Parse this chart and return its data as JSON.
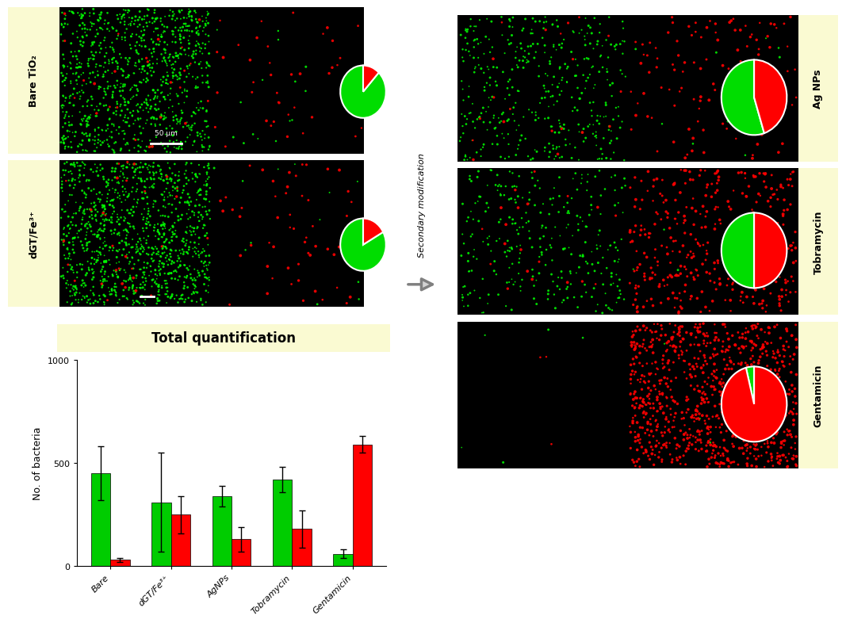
{
  "left_labels": [
    "Bare TiO₂",
    "dGT/Fe³⁺"
  ],
  "right_labels": [
    "Ag NPs",
    "Tobramycin",
    "Gentamicin"
  ],
  "bar_categories": [
    "Bare",
    "dGT/Fe³⁺",
    "AgNPs",
    "Tobramycin",
    "Gentamicin"
  ],
  "green_values": [
    450,
    310,
    340,
    420,
    60
  ],
  "red_values": [
    30,
    250,
    130,
    180,
    590
  ],
  "green_errors": [
    130,
    240,
    50,
    60,
    20
  ],
  "red_errors": [
    8,
    90,
    60,
    90,
    40
  ],
  "ylim": [
    0,
    1000
  ],
  "ylabel": "No. of bacteria",
  "chart_title": "Total quantification",
  "pie_data": [
    {
      "green": 88,
      "red": 12
    },
    {
      "green": 83,
      "red": 17
    },
    {
      "green": 55,
      "red": 45
    },
    {
      "green": 50,
      "red": 50
    },
    {
      "green": 4,
      "red": 96
    }
  ],
  "label_bg": "#FAFAD2",
  "secondary_mod_text": "Secondary modification",
  "scale_bar_text": "50 μm"
}
